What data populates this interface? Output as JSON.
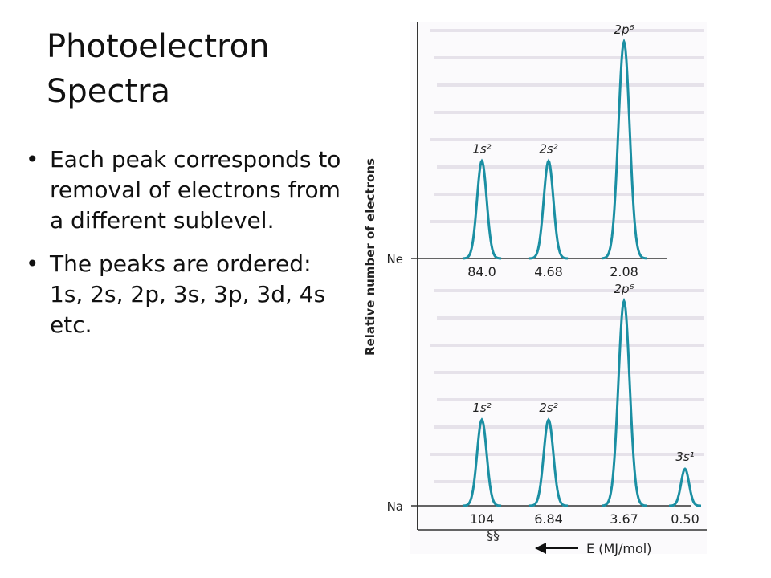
{
  "slide": {
    "title": "Photoelectron Spectra",
    "bullets": [
      "Each peak corresponds to removal of electrons from a different sublevel.",
      "The peaks are ordered:  1s, 2s, 2p, 3s, 3p, 3d, 4s etc."
    ]
  },
  "chart_data": {
    "type": "line",
    "ylabel": "Relative number of electrons",
    "xlabel": "E (MJ/mol)",
    "x_direction": "decreasing to the right (arrow points left)",
    "axis_break_symbol": "§§",
    "colors": {
      "peak": "#1b8fa3",
      "axis": "#333333",
      "background_text": "#c9c4cf"
    },
    "series": [
      {
        "name": "Ne",
        "peaks": [
          {
            "sublevel": "1s²",
            "energy": "84.0",
            "relative_height": 0.45
          },
          {
            "sublevel": "2s²",
            "energy": "4.68",
            "relative_height": 0.45
          },
          {
            "sublevel": "2p⁶",
            "energy": "2.08",
            "relative_height": 1.0
          }
        ]
      },
      {
        "name": "Na",
        "peaks": [
          {
            "sublevel": "1s²",
            "energy": "104",
            "relative_height": 0.42
          },
          {
            "sublevel": "2s²",
            "energy": "6.84",
            "relative_height": 0.42
          },
          {
            "sublevel": "2p⁶",
            "energy": "3.67",
            "relative_height": 1.0
          },
          {
            "sublevel": "3s¹",
            "energy": "0.50",
            "relative_height": 0.18
          }
        ]
      }
    ]
  }
}
